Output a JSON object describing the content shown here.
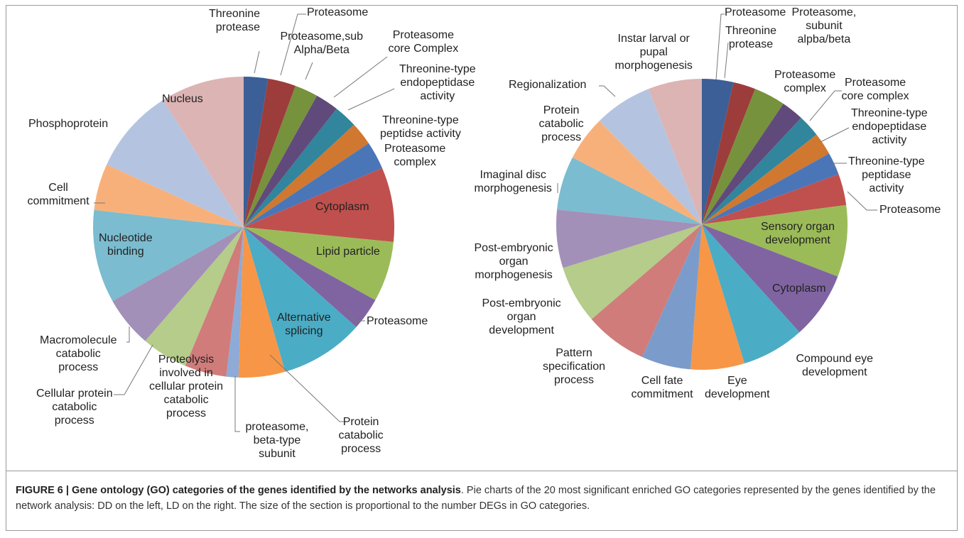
{
  "chart_data": [
    {
      "type": "pie",
      "categories": [
        "Threonine\nprotease",
        "Proteasome",
        "Proteasome,sub\nAlpha/Beta",
        "Proteasome\ncore Complex",
        "Threonine-type\nendopeptidase\nactivity",
        "Threonine-type\npeptidse activity",
        "Proteasome\ncomplex",
        "Cytoplasm",
        "Lipid particle",
        "Proteasome",
        "Alternative\nsplicing",
        "Protein\ncatabolic\nprocess",
        "proteasome,\nbeta-type\nsubunit",
        "Proteolysis\ninvolved  in\ncellular protein\ncatabolic\nprocess",
        "Cellular protein\ncatabolic\nprocess",
        "Macromolecule\ncatabolic\nprocess",
        "Nucleotide\nbinding",
        "Cell\ncommitment",
        "Phosphoprotein",
        "Nucleus"
      ],
      "values": [
        2.6,
        3,
        2.5,
        2.5,
        2.5,
        2.5,
        3,
        8,
        6.5,
        3.5,
        9,
        5,
        1.3,
        4.5,
        5,
        5.5,
        10,
        5,
        9.2,
        9
      ],
      "colors": [
        "#3b5f96",
        "#9c3d3b",
        "#77923c",
        "#604a7b",
        "#31859c",
        "#d0782f",
        "#4a76b8",
        "#c0504d",
        "#9bbb59",
        "#8064a2",
        "#4bacc6",
        "#f79646",
        "#8eaad6",
        "#d07c7a",
        "#b5cc8a",
        "#a290b8",
        "#7bbcd0",
        "#f8b07b",
        "#b4c4e0",
        "#dcb4b3"
      ]
    },
    {
      "type": "pie",
      "categories": [
        "Proteasome",
        "Threonine\nprotease",
        "Proteasome,\nsubunit\nalpba/beta",
        "Proteasome\ncomplex",
        "Proteasome\ncore complex",
        "Threonine-type\nendopeptidase\nactivity",
        "Threonine-type\npeptidase\nactivity",
        "Proteasome",
        "Sensory organ\ndevelopment",
        "Cytoplasm",
        "Compound eye\ndevelopment",
        "Eye\ndevelopment",
        "Cell fate\ncommitment",
        "Pattern\nspecification\nprocess",
        "Post-embryonic\norgan\ndevelopment",
        "Post-embryonic\norgan\nmorphogenesis",
        "Imaginal disc\nmorphogenesis",
        "Protein\ncatabolic\nprocess",
        "Regionalization",
        "Instar larval or\npupal\nmorphogenesis"
      ],
      "values": [
        3.5,
        2.5,
        3.5,
        2.5,
        2.5,
        2.5,
        2.5,
        3.5,
        8,
        7.5,
        7,
        6,
        5.5,
        7,
        6.5,
        6.5,
        6,
        5,
        6.5,
        6
      ],
      "colors": [
        "#3b5f96",
        "#9c3d3b",
        "#77923c",
        "#604a7b",
        "#31859c",
        "#d0782f",
        "#4a76b8",
        "#c0504d",
        "#9bbb59",
        "#8064a2",
        "#4bacc6",
        "#f79646",
        "#7b9cca",
        "#d07c7a",
        "#b5cc8a",
        "#a290b8",
        "#7bbcd0",
        "#f8b07b",
        "#b4c4e0",
        "#dcb4b3"
      ]
    }
  ],
  "caption": {
    "title": "FIGURE 6 | Gene ontology (GO) categories of the genes identified by the networks analysis",
    "text": ". Pie charts of the 20 most significant enriched GO categories represented by the genes identified by the network analysis: DD on the left, LD on the right. The size of the section is proportional to the number DEGs in GO categories."
  }
}
